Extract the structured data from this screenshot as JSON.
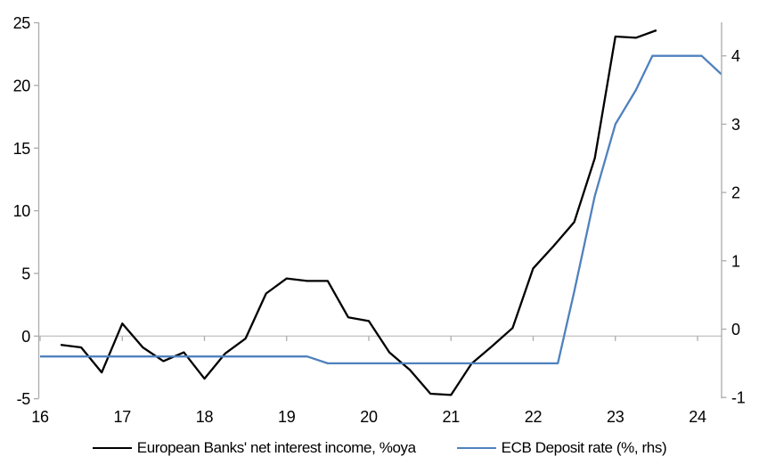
{
  "chart_data": {
    "type": "line",
    "title": "",
    "x_axis": {
      "tick_labels": [
        "16",
        "17",
        "18",
        "19",
        "20",
        "21",
        "22",
        "23",
        "24"
      ],
      "ticks": [
        16,
        17,
        18,
        19,
        20,
        21,
        22,
        23,
        24
      ],
      "range": [
        16,
        24.31
      ],
      "grid": false
    },
    "left_axis": {
      "ticks": [
        -5,
        0,
        5,
        10,
        15,
        20,
        25
      ],
      "range": [
        -5,
        25
      ],
      "zero_gridline": true
    },
    "right_axis": {
      "ticks": [
        -1,
        0,
        1,
        2,
        3,
        4
      ],
      "range": [
        -1,
        4.5
      ]
    },
    "legend_position": "bottom",
    "series": [
      {
        "name": "European Banks' net interest income, %oya",
        "axis": "left",
        "color": "#000000",
        "x": [
          16.25,
          16.5,
          16.75,
          17.0,
          17.25,
          17.5,
          17.75,
          18.0,
          18.25,
          18.5,
          18.75,
          19.0,
          19.25,
          19.5,
          19.75,
          20.0,
          20.25,
          20.5,
          20.75,
          21.0,
          21.25,
          21.5,
          21.75,
          22.0,
          22.25,
          22.5,
          22.75,
          23.0,
          23.25,
          23.5
        ],
        "values": [
          -0.7,
          -0.9,
          -2.9,
          1.0,
          -0.9,
          -2.0,
          -1.3,
          -3.4,
          -1.4,
          -0.2,
          3.4,
          4.6,
          4.4,
          4.4,
          1.5,
          1.2,
          -1.3,
          -2.7,
          -4.6,
          -4.7,
          -2.2,
          -0.8,
          0.65,
          5.4,
          7.2,
          9.1,
          14.2,
          23.9,
          23.8,
          24.4
        ]
      },
      {
        "name": "ECB Deposit rate (%, rhs)",
        "axis": "right",
        "color": "#4F81BD",
        "points": [
          [
            16.0,
            -0.4
          ],
          [
            19.25,
            -0.4
          ],
          [
            19.5,
            -0.5
          ],
          [
            22.3,
            -0.5
          ],
          [
            22.5,
            0.55
          ],
          [
            22.75,
            1.95
          ],
          [
            23.0,
            3.0
          ],
          [
            23.25,
            3.5
          ],
          [
            23.45,
            4.0
          ],
          [
            24.05,
            4.0
          ],
          [
            24.29,
            3.73
          ]
        ]
      }
    ]
  },
  "colors": {
    "axis": "#ABABAB",
    "zero_gridline": "#C6C6C6",
    "text": "#000000",
    "series_nii": "#000000",
    "series_ecb": "#4F81BD"
  }
}
